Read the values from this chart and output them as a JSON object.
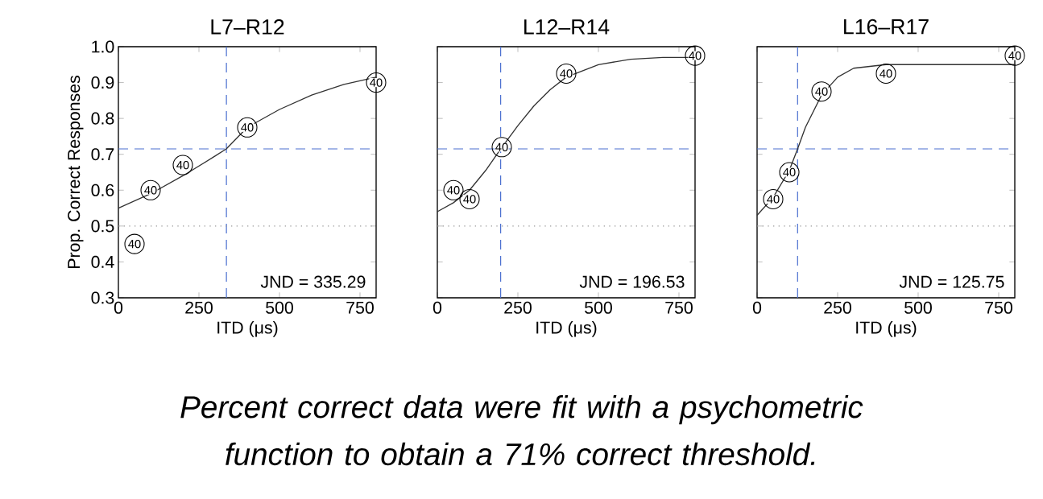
{
  "chart_data": [
    {
      "type": "scatter",
      "title": "L7–R12",
      "xlabel": "ITD (μs)",
      "ylabel": "Prop. Correct Responses",
      "xlim": [
        0,
        800
      ],
      "ylim": [
        0.3,
        1.0
      ],
      "xticks": [
        0,
        250,
        500,
        750
      ],
      "yticks": [
        {
          "value": 0.3,
          "label": "0.3"
        },
        {
          "value": 0.4,
          "label": "0.4"
        },
        {
          "value": 0.5,
          "label": "0.5"
        },
        {
          "value": 0.6,
          "label": "0.6"
        },
        {
          "value": 0.7,
          "label": "0.7"
        },
        {
          "value": 0.8,
          "label": "0.8"
        },
        {
          "value": 0.9,
          "label": "0.9"
        },
        {
          "value": 1.0,
          "label": "1.0"
        }
      ],
      "series": [
        {
          "color": "#000000",
          "marker": "circle",
          "x": [
            50,
            100,
            200,
            400,
            800
          ],
          "values": [
            0.45,
            0.6,
            0.67,
            0.775,
            0.9
          ]
        },
        {
          "type": "line",
          "color": "#333333",
          "marker": "none",
          "line_style": "solid",
          "x": [
            0,
            100,
            200,
            300,
            335,
            400,
            500,
            600,
            700,
            750,
            800
          ],
          "values": [
            0.55,
            0.59,
            0.64,
            0.695,
            0.715,
            0.775,
            0.825,
            0.865,
            0.895,
            0.905,
            0.915
          ]
        }
      ],
      "ref_lines": [
        {
          "axis": "x",
          "value": 335.29,
          "color": "#4a6fd0",
          "line_style": "dashed"
        },
        {
          "axis": "y",
          "value": 0.715,
          "color": "#4a6fd0",
          "line_style": "dashed"
        },
        {
          "axis": "y",
          "value": 0.5,
          "color": "#999999",
          "line_style": "dotted"
        }
      ],
      "annotations": [
        "JND = 335.29",
        {
          "text": "40",
          "x": 50,
          "y": 0.45
        },
        {
          "text": "40",
          "x": 100,
          "y": 0.6
        },
        {
          "text": "40",
          "x": 200,
          "y": 0.67
        },
        {
          "text": "40",
          "x": 400,
          "y": 0.775
        },
        {
          "text": "40",
          "x": 800,
          "y": 0.9
        }
      ]
    },
    {
      "type": "scatter",
      "title": "L12–R14",
      "xlabel": "ITD (μs)",
      "xlim": [
        0,
        800
      ],
      "ylim": [
        0.3,
        1.0
      ],
      "xticks": [
        0,
        250,
        500,
        750
      ],
      "yticks": [
        {
          "value": 0.3,
          "label": null
        },
        {
          "value": 0.4,
          "label": null
        },
        {
          "value": 0.5,
          "label": null
        },
        {
          "value": 0.6,
          "label": null
        },
        {
          "value": 0.7,
          "label": null
        },
        {
          "value": 0.8,
          "label": null
        },
        {
          "value": 0.9,
          "label": null
        },
        {
          "value": 1.0,
          "label": null
        }
      ],
      "tick_labels": "x",
      "series": [
        {
          "color": "#000000",
          "marker": "circle",
          "x": [
            50,
            100,
            200,
            400,
            800
          ],
          "values": [
            0.6,
            0.575,
            0.72,
            0.925,
            0.975
          ]
        },
        {
          "type": "line",
          "color": "#333333",
          "marker": "none",
          "line_style": "solid",
          "x": [
            0,
            50,
            100,
            150,
            196.53,
            250,
            300,
            350,
            400,
            500,
            600,
            700,
            800
          ],
          "values": [
            0.54,
            0.565,
            0.6,
            0.655,
            0.715,
            0.78,
            0.835,
            0.88,
            0.915,
            0.95,
            0.965,
            0.97,
            0.97
          ]
        }
      ],
      "ref_lines": [
        {
          "axis": "x",
          "value": 196.53,
          "color": "#4a6fd0",
          "line_style": "dashed"
        },
        {
          "axis": "y",
          "value": 0.715,
          "color": "#4a6fd0",
          "line_style": "dashed"
        },
        {
          "axis": "y",
          "value": 0.5,
          "color": "#999999",
          "line_style": "dotted"
        }
      ],
      "annotations": [
        "JND = 196.53",
        "*Percent correct data were fit with a psychometric function to obtain a 71% correct threshold.*",
        {
          "text": "40",
          "x": 50,
          "y": 0.6
        },
        {
          "text": "40",
          "x": 100,
          "y": 0.575
        },
        {
          "text": "40",
          "x": 200,
          "y": 0.72
        },
        {
          "text": "40",
          "x": 400,
          "y": 0.925
        },
        {
          "text": "40",
          "x": 800,
          "y": 0.975
        }
      ]
    },
    {
      "type": "scatter",
      "title": "L16–R17",
      "xlabel": "ITD (μs)",
      "xlim": [
        0,
        800
      ],
      "ylim": [
        0.3,
        1.0
      ],
      "xticks": [
        0,
        250,
        500,
        750
      ],
      "yticks": [
        {
          "value": 0.3,
          "label": null
        },
        {
          "value": 0.4,
          "label": null
        },
        {
          "value": 0.5,
          "label": null
        },
        {
          "value": 0.6,
          "label": null
        },
        {
          "value": 0.7,
          "label": null
        },
        {
          "value": 0.8,
          "label": null
        },
        {
          "value": 0.9,
          "label": null
        },
        {
          "value": 1.0,
          "label": null
        }
      ],
      "tick_labels": "x",
      "series": [
        {
          "color": "#000000",
          "marker": "circle",
          "x": [
            50,
            100,
            200,
            400,
            800
          ],
          "values": [
            0.575,
            0.65,
            0.875,
            0.925,
            0.975
          ]
        },
        {
          "type": "line",
          "color": "#333333",
          "marker": "none",
          "line_style": "solid",
          "x": [
            0,
            50,
            100,
            125.75,
            150,
            200,
            250,
            300,
            400,
            500,
            800
          ],
          "values": [
            0.53,
            0.58,
            0.655,
            0.715,
            0.775,
            0.865,
            0.915,
            0.94,
            0.95,
            0.95,
            0.95
          ]
        }
      ],
      "ref_lines": [
        {
          "axis": "x",
          "value": 125.75,
          "color": "#4a6fd0",
          "line_style": "dashed"
        },
        {
          "axis": "y",
          "value": 0.715,
          "color": "#4a6fd0",
          "line_style": "dashed"
        },
        {
          "axis": "y",
          "value": 0.5,
          "color": "#999999",
          "line_style": "dotted"
        }
      ],
      "annotations": [
        "JND = 125.75",
        {
          "text": "40",
          "x": 50,
          "y": 0.575
        },
        {
          "text": "40",
          "x": 100,
          "y": 0.65
        },
        {
          "text": "40",
          "x": 200,
          "y": 0.875
        },
        {
          "text": "40",
          "x": 400,
          "y": 0.925
        },
        {
          "text": "40",
          "x": 800,
          "y": 0.975
        }
      ]
    }
  ]
}
